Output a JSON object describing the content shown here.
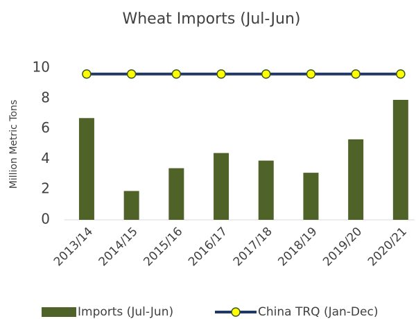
{
  "chart_data": {
    "type": "bar",
    "title": "Wheat Imports (Jul-Jun)",
    "y_label": "Million Metric Tons",
    "categories": [
      "2013/14",
      "2014/15",
      "2015/16",
      "2016/17",
      "2017/18",
      "2018/19",
      "2019/20",
      "2020/21"
    ],
    "series": [
      {
        "name": "Imports (Jul-Jun)",
        "type": "bar",
        "color": "#4f6228",
        "values": [
          6.7,
          1.9,
          3.4,
          4.4,
          3.9,
          3.1,
          5.3,
          7.9
        ]
      },
      {
        "name": "China TRQ (Jan-Dec)",
        "type": "line",
        "color": "#1f3864",
        "marker_color": "#ffff00",
        "values": [
          9.6,
          9.6,
          9.6,
          9.6,
          9.6,
          9.6,
          9.6,
          9.6
        ]
      }
    ],
    "ylim": [
      0,
      10
    ],
    "yticks": [
      0,
      2,
      4,
      6,
      8,
      10
    ],
    "grid": false
  }
}
